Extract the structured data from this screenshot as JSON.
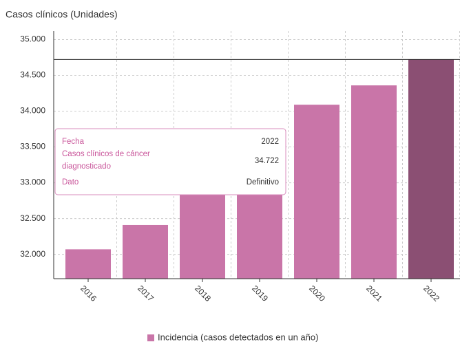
{
  "chart_data": {
    "type": "bar",
    "y_label": "Casos clínicos (Unidades)",
    "categories": [
      "2016",
      "2017",
      "2018",
      "2019",
      "2020",
      "2021",
      "2022"
    ],
    "series": [
      {
        "name": "Incidencia (casos detectados en un año)",
        "color": "#c975a8",
        "colors": [
          "#c975a8",
          "#c975a8",
          "#c975a8",
          "#c975a8",
          "#c975a8",
          "#c975a8",
          "#8b4f73"
        ],
        "values": [
          32070,
          32410,
          32900,
          33440,
          34090,
          34360,
          34722
        ]
      }
    ],
    "ylim": [
      31660,
      35120
    ],
    "yticks": [
      {
        "value": 32000,
        "label": "32.000"
      },
      {
        "value": 32500,
        "label": "32.500"
      },
      {
        "value": 33000,
        "label": "33.000"
      },
      {
        "value": 33500,
        "label": "33.500"
      },
      {
        "value": 34000,
        "label": "34.000"
      },
      {
        "value": 34500,
        "label": "34.500"
      },
      {
        "value": 35000,
        "label": "35.000"
      }
    ],
    "grid": true,
    "legend": "bottom",
    "tooltip": {
      "rows": [
        [
          "Fecha",
          "2022"
        ],
        [
          "Casos clínicos de cáncer diagnosticado",
          "34.722"
        ],
        [
          "Dato",
          "Definitivo"
        ]
      ]
    }
  }
}
